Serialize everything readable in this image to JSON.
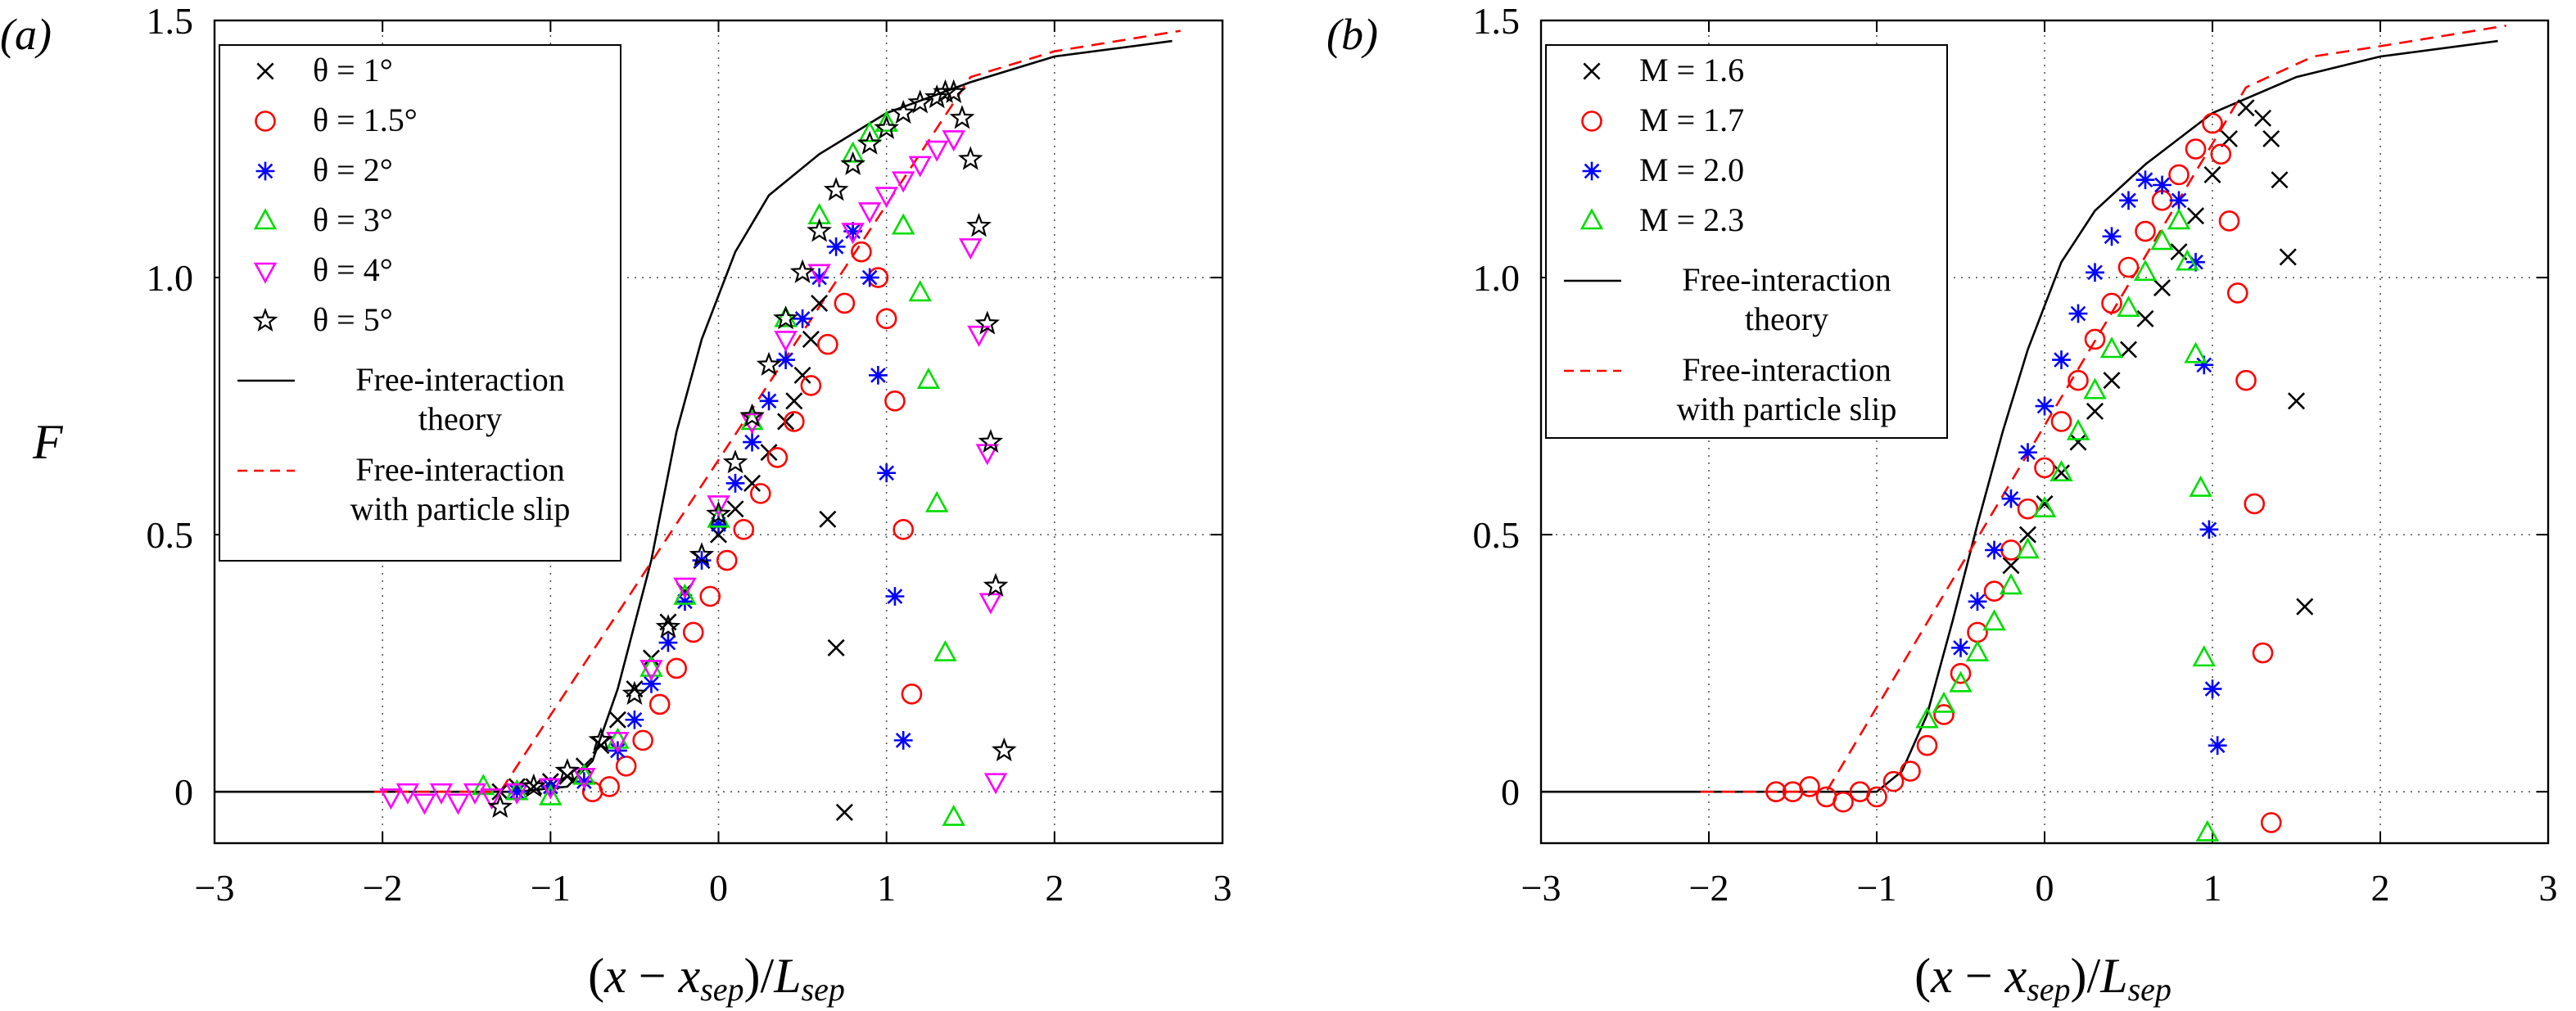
{
  "figure": {
    "panel_labels": [
      "(a)",
      "(b)"
    ],
    "y_axis_label": "F",
    "x_axis_label": "(x − x_sep)/L_sep",
    "x_axis_label_parts": {
      "lead": "(",
      "x": "x",
      "minus": " − ",
      "xsep": "x",
      "sub1": "sep",
      "close": ")/",
      "L": "L",
      "sub2": "sep"
    }
  },
  "chart_data": [
    {
      "type": "scatter",
      "panel": "(a)",
      "xlabel": "(x − x_sep)/L_sep",
      "ylabel": "F",
      "xlim": [
        -3,
        3
      ],
      "ylim": [
        -0.1,
        1.5
      ],
      "xticks": [
        "−3",
        "−2",
        "−1",
        "0",
        "1",
        "2",
        "3"
      ],
      "yticks": [
        "0",
        "0.5",
        "1.0",
        "1.5"
      ],
      "ytick_values": [
        0,
        0.5,
        1.0,
        1.5
      ],
      "grid": true,
      "legend_position": "top-left",
      "lines": [
        {
          "name": "Free-interaction theory",
          "label_lines": [
            "Free-interaction",
            "theory"
          ],
          "color": "#000000",
          "dash": "solid",
          "points": [
            [
              -3,
              0
            ],
            [
              -1.2,
              0
            ],
            [
              -0.9,
              0.01
            ],
            [
              -0.75,
              0.06
            ],
            [
              -0.6,
              0.2
            ],
            [
              -0.4,
              0.45
            ],
            [
              -0.25,
              0.7
            ],
            [
              -0.1,
              0.88
            ],
            [
              0.1,
              1.05
            ],
            [
              0.3,
              1.16
            ],
            [
              0.6,
              1.24
            ],
            [
              1.0,
              1.32
            ],
            [
              1.5,
              1.38
            ],
            [
              2.0,
              1.43
            ],
            [
              2.7,
              1.46
            ]
          ]
        },
        {
          "name": "Free-interaction with particle slip",
          "label_lines": [
            "Free-interaction",
            "with particle slip"
          ],
          "color": "#ff0000",
          "dash": "dashed",
          "points": [
            [
              -2.05,
              0
            ],
            [
              -1.7,
              0
            ],
            [
              -1.3,
              0
            ],
            [
              1.5,
              1.39
            ],
            [
              2.0,
              1.44
            ],
            [
              2.75,
              1.48
            ]
          ]
        }
      ],
      "series": [
        {
          "name": "θ = 1°",
          "legend_label": "θ = 1°",
          "marker": "x",
          "color": "#000000",
          "x": [
            -1.3,
            -1.2,
            -1.1,
            -1.0,
            -0.9,
            -0.8,
            -0.7,
            -0.6,
            -0.5,
            -0.4,
            -0.3,
            -0.2,
            -0.1,
            0.0,
            0.1,
            0.2,
            0.3,
            0.4,
            0.45,
            0.5,
            0.55,
            0.6,
            0.65,
            0.7,
            0.75
          ],
          "y": [
            0.0,
            0.01,
            0.01,
            0.02,
            0.03,
            0.05,
            0.09,
            0.14,
            0.2,
            0.26,
            0.33,
            0.39,
            0.45,
            0.5,
            0.55,
            0.6,
            0.66,
            0.72,
            0.76,
            0.81,
            0.88,
            0.95,
            0.53,
            0.28,
            -0.04
          ]
        },
        {
          "name": "θ = 1.5°",
          "legend_label": "θ = 1.5°",
          "marker": "o",
          "color": "#ff0000",
          "x": [
            -0.75,
            -0.65,
            -0.55,
            -0.45,
            -0.35,
            -0.25,
            -0.15,
            -0.05,
            0.05,
            0.15,
            0.25,
            0.35,
            0.45,
            0.55,
            0.65,
            0.75,
            0.85,
            0.95,
            1.0,
            1.05,
            1.1,
            1.15
          ],
          "y": [
            0.0,
            0.01,
            0.05,
            0.1,
            0.17,
            0.24,
            0.31,
            0.38,
            0.45,
            0.51,
            0.58,
            0.65,
            0.72,
            0.79,
            0.87,
            0.95,
            1.05,
            1.0,
            0.92,
            0.76,
            0.51,
            0.19
          ]
        },
        {
          "name": "θ = 2°",
          "legend_label": "θ = 2°",
          "marker": "*",
          "color": "#0000ff",
          "x": [
            -1.2,
            -1.0,
            -0.8,
            -0.6,
            -0.5,
            -0.4,
            -0.3,
            -0.2,
            -0.1,
            0.0,
            0.1,
            0.2,
            0.3,
            0.4,
            0.5,
            0.6,
            0.7,
            0.8,
            0.9,
            0.95,
            1.0,
            1.05,
            1.1
          ],
          "y": [
            0.0,
            0.01,
            0.02,
            0.08,
            0.14,
            0.21,
            0.29,
            0.37,
            0.45,
            0.52,
            0.6,
            0.68,
            0.76,
            0.84,
            0.92,
            1.0,
            1.06,
            1.09,
            1.0,
            0.81,
            0.62,
            0.38,
            0.1
          ]
        },
        {
          "name": "θ = 3°",
          "legend_label": "θ = 3°",
          "marker": "triangle-up",
          "color": "#00dd00",
          "x": [
            -1.4,
            -1.2,
            -1.0,
            -0.8,
            -0.6,
            -0.4,
            -0.2,
            0.0,
            0.2,
            0.4,
            0.6,
            0.8,
            0.9,
            1.0,
            1.1,
            1.2,
            1.25,
            1.3,
            1.35,
            1.4
          ],
          "y": [
            0.01,
            0.0,
            -0.01,
            0.03,
            0.1,
            0.24,
            0.38,
            0.53,
            0.72,
            0.92,
            1.12,
            1.24,
            1.28,
            1.3,
            1.1,
            0.97,
            0.8,
            0.56,
            0.27,
            -0.05
          ]
        },
        {
          "name": "θ = 4°",
          "legend_label": "θ = 4°",
          "marker": "triangle-down",
          "color": "#ff00ff",
          "x": [
            -1.95,
            -1.85,
            -1.75,
            -1.65,
            -1.55,
            -1.45,
            -1.35,
            -1.2,
            -1.0,
            -0.8,
            -0.6,
            -0.4,
            -0.2,
            0.0,
            0.2,
            0.4,
            0.6,
            0.8,
            0.9,
            1.0,
            1.1,
            1.2,
            1.3,
            1.4,
            1.5,
            1.55,
            1.6,
            1.62,
            1.65
          ],
          "y": [
            -0.01,
            0.0,
            -0.02,
            0.0,
            -0.02,
            0.0,
            -0.01,
            0.0,
            0.01,
            0.03,
            0.1,
            0.24,
            0.4,
            0.56,
            0.72,
            0.88,
            1.01,
            1.09,
            1.13,
            1.16,
            1.19,
            1.22,
            1.25,
            1.27,
            1.06,
            0.89,
            0.66,
            0.37,
            0.02
          ]
        },
        {
          "name": "θ = 5°",
          "legend_label": "θ = 5°",
          "marker": "star",
          "color": "#000000",
          "x": [
            -1.3,
            -1.1,
            -0.9,
            -0.7,
            -0.5,
            -0.3,
            -0.1,
            0.0,
            0.1,
            0.2,
            0.3,
            0.4,
            0.5,
            0.6,
            0.7,
            0.8,
            0.9,
            1.0,
            1.1,
            1.2,
            1.3,
            1.35,
            1.4,
            1.45,
            1.5,
            1.55,
            1.6,
            1.62,
            1.65,
            1.7
          ],
          "y": [
            -0.03,
            0.01,
            0.04,
            0.1,
            0.19,
            0.32,
            0.46,
            0.54,
            0.64,
            0.73,
            0.83,
            0.92,
            1.01,
            1.09,
            1.17,
            1.22,
            1.26,
            1.29,
            1.32,
            1.34,
            1.35,
            1.36,
            1.36,
            1.31,
            1.23,
            1.1,
            0.91,
            0.68,
            0.4,
            0.08
          ]
        }
      ]
    },
    {
      "type": "scatter",
      "panel": "(b)",
      "xlabel": "(x − x_sep)/L_sep",
      "ylabel": "",
      "xlim": [
        -3,
        3
      ],
      "ylim": [
        -0.1,
        1.5
      ],
      "xticks": [
        "−3",
        "−2",
        "−1",
        "0",
        "1",
        "2",
        "3"
      ],
      "yticks": [
        "0",
        "0.5",
        "1.0",
        "1.5"
      ],
      "ytick_values": [
        0,
        0.5,
        1.0,
        1.5
      ],
      "grid": true,
      "legend_position": "top-left",
      "lines": [
        {
          "name": "Free-interaction theory",
          "label_lines": [
            "Free-interaction",
            "theory"
          ],
          "color": "#000000",
          "dash": "solid",
          "points": [
            [
              -3,
              0
            ],
            [
              -1.0,
              0
            ],
            [
              -0.85,
              0.04
            ],
            [
              -0.7,
              0.15
            ],
            [
              -0.55,
              0.33
            ],
            [
              -0.4,
              0.52
            ],
            [
              -0.25,
              0.7
            ],
            [
              -0.1,
              0.86
            ],
            [
              0.1,
              1.03
            ],
            [
              0.3,
              1.13
            ],
            [
              0.6,
              1.22
            ],
            [
              1.0,
              1.32
            ],
            [
              1.5,
              1.39
            ],
            [
              2.0,
              1.43
            ],
            [
              2.7,
              1.46
            ]
          ]
        },
        {
          "name": "Free-interaction with particle slip",
          "label_lines": [
            "Free-interaction",
            "with particle slip"
          ],
          "color": "#ff0000",
          "dash": "dashed",
          "points": [
            [
              -2.05,
              0
            ],
            [
              -1.7,
              0
            ],
            [
              -1.3,
              0
            ],
            [
              1.2,
              1.37
            ],
            [
              1.6,
              1.43
            ],
            [
              2.0,
              1.45
            ],
            [
              2.75,
              1.49
            ]
          ]
        }
      ],
      "series": [
        {
          "name": "M = 1.6",
          "legend_label": "M = 1.6",
          "marker": "x",
          "color": "#000000",
          "x": [
            -0.2,
            -0.1,
            0.0,
            0.1,
            0.2,
            0.3,
            0.4,
            0.5,
            0.6,
            0.7,
            0.8,
            0.9,
            1.0,
            1.1,
            1.2,
            1.3,
            1.35,
            1.4,
            1.45,
            1.5,
            1.55
          ],
          "y": [
            0.44,
            0.5,
            0.56,
            0.62,
            0.68,
            0.74,
            0.8,
            0.86,
            0.92,
            0.98,
            1.05,
            1.12,
            1.2,
            1.27,
            1.33,
            1.31,
            1.27,
            1.19,
            1.04,
            0.76,
            0.36
          ]
        },
        {
          "name": "M = 1.7",
          "legend_label": "M = 1.7",
          "marker": "o",
          "color": "#ff0000",
          "x": [
            -1.6,
            -1.5,
            -1.4,
            -1.3,
            -1.2,
            -1.1,
            -1.0,
            -0.9,
            -0.8,
            -0.7,
            -0.6,
            -0.5,
            -0.4,
            -0.3,
            -0.2,
            -0.1,
            0.0,
            0.1,
            0.2,
            0.3,
            0.4,
            0.5,
            0.6,
            0.7,
            0.8,
            0.9,
            1.0,
            1.05,
            1.1,
            1.15,
            1.2,
            1.25,
            1.3,
            1.35
          ],
          "y": [
            0.0,
            0.0,
            0.01,
            -0.01,
            -0.02,
            0.0,
            -0.01,
            0.02,
            0.04,
            0.09,
            0.15,
            0.23,
            0.31,
            0.39,
            0.47,
            0.55,
            0.63,
            0.72,
            0.8,
            0.88,
            0.95,
            1.02,
            1.09,
            1.15,
            1.2,
            1.25,
            1.3,
            1.24,
            1.11,
            0.97,
            0.8,
            0.56,
            0.27,
            -0.06
          ]
        },
        {
          "name": "M = 2.0",
          "legend_label": "M = 2.0",
          "marker": "*",
          "color": "#0000ff",
          "x": [
            -0.5,
            -0.4,
            -0.3,
            -0.2,
            -0.1,
            0.0,
            0.1,
            0.2,
            0.3,
            0.4,
            0.5,
            0.6,
            0.7,
            0.8,
            0.9,
            0.95,
            0.98,
            1.0,
            1.03
          ],
          "y": [
            0.28,
            0.37,
            0.47,
            0.57,
            0.66,
            0.75,
            0.84,
            0.93,
            1.01,
            1.08,
            1.15,
            1.19,
            1.18,
            1.15,
            1.03,
            0.83,
            0.51,
            0.2,
            0.09
          ]
        },
        {
          "name": "M = 2.3",
          "legend_label": "M = 2.3",
          "marker": "triangle-up",
          "color": "#00dd00",
          "x": [
            -0.7,
            -0.6,
            -0.5,
            -0.4,
            -0.3,
            -0.2,
            -0.1,
            0.0,
            0.1,
            0.2,
            0.3,
            0.4,
            0.5,
            0.6,
            0.7,
            0.8,
            0.85,
            0.9,
            0.93,
            0.95,
            0.97
          ],
          "y": [
            0.14,
            0.17,
            0.21,
            0.27,
            0.33,
            0.4,
            0.47,
            0.55,
            0.62,
            0.7,
            0.78,
            0.86,
            0.94,
            1.01,
            1.07,
            1.11,
            1.03,
            0.85,
            0.59,
            0.26,
            -0.08
          ]
        }
      ]
    }
  ]
}
